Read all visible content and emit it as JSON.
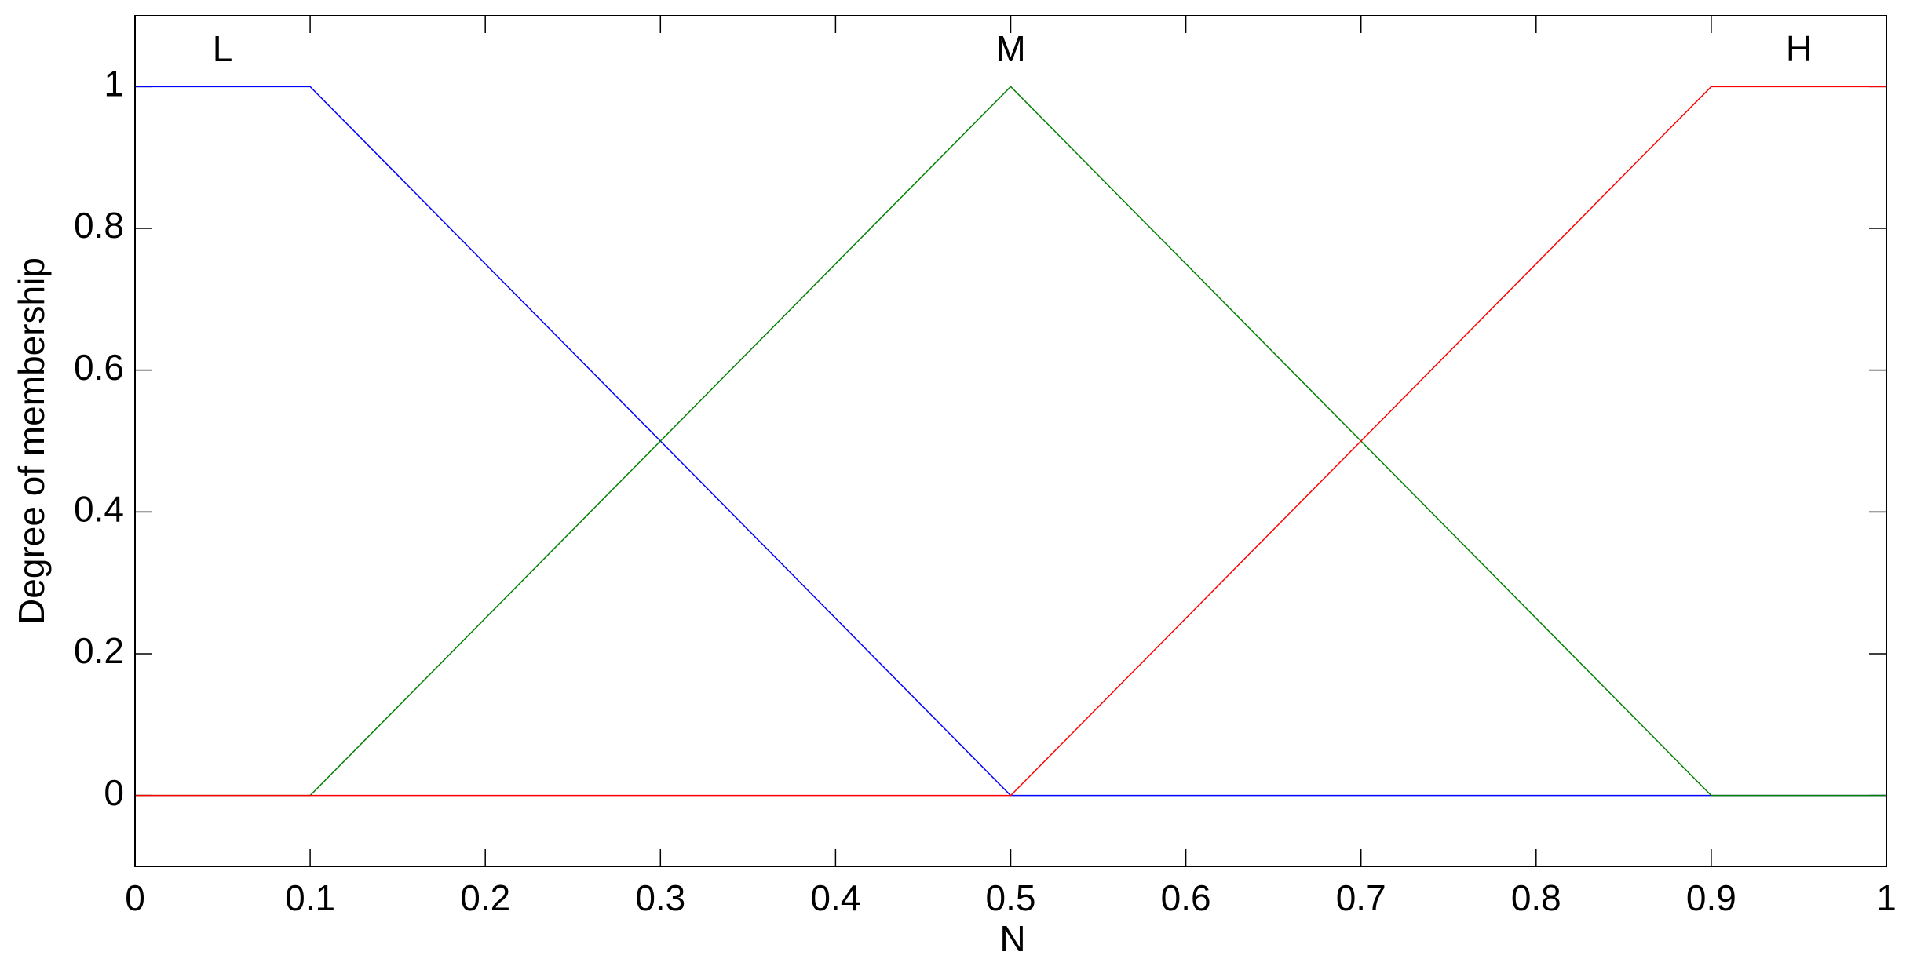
{
  "chart_data": {
    "type": "line",
    "x_label": "N",
    "y_label": "Degree of membership",
    "x": [
      0,
      0.1,
      0.5,
      0.9,
      1
    ],
    "series": [
      {
        "name": "L",
        "color": "#0000ff",
        "values": [
          1,
          1,
          0,
          0,
          0
        ]
      },
      {
        "name": "M",
        "color": "#008000",
        "values": [
          0,
          0,
          1,
          0,
          0
        ]
      },
      {
        "name": "H",
        "color": "#ff0000",
        "values": [
          0,
          0,
          0,
          1,
          1
        ]
      }
    ],
    "xlim": [
      0,
      1
    ],
    "xticks": [
      0,
      0.1,
      0.2,
      0.3,
      0.4,
      0.5,
      0.6,
      0.7,
      0.8,
      0.9,
      1
    ],
    "ylim": [
      -0.1,
      1.1
    ],
    "yticks": [
      0,
      0.2,
      0.4,
      0.6,
      0.8,
      1
    ],
    "grid": false
  }
}
